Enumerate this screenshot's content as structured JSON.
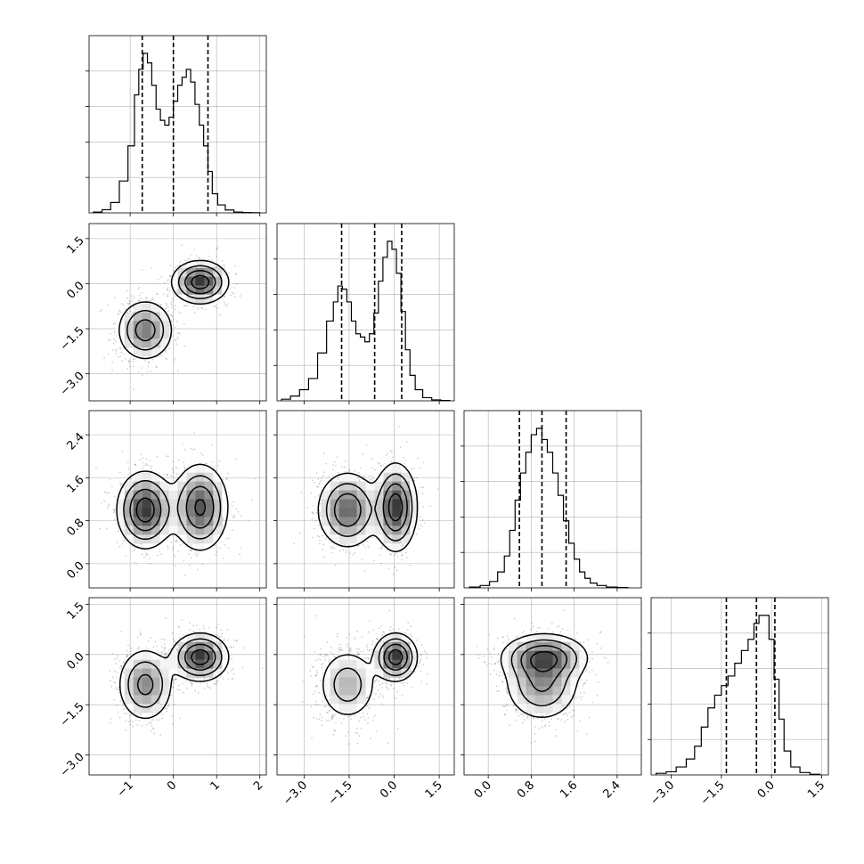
{
  "chart_data": {
    "type": "corner",
    "title": "",
    "grid": true,
    "parameters": [
      {
        "range": [
          -1.95,
          2.15
        ],
        "ticks": [
          -1,
          0,
          1,
          2
        ],
        "tick_labels": [
          "−1",
          "0",
          "1",
          "2"
        ],
        "quantiles": [
          -0.72,
          0.0,
          0.8
        ],
        "histogram": {
          "bins": [
            -1.75,
            -1.55,
            -1.35,
            -1.15,
            -0.95,
            -0.85,
            -0.75,
            -0.65,
            -0.55,
            -0.45,
            -0.35,
            -0.25,
            -0.15,
            -0.05,
            0.05,
            0.15,
            0.25,
            0.35,
            0.45,
            0.55,
            0.65,
            0.75,
            0.85,
            0.95,
            1.1,
            1.3,
            1.5,
            1.7,
            1.9
          ],
          "counts": [
            0.005,
            0.02,
            0.065,
            0.2,
            0.42,
            0.74,
            0.9,
            1.0,
            0.94,
            0.8,
            0.65,
            0.58,
            0.55,
            0.6,
            0.7,
            0.8,
            0.85,
            0.9,
            0.82,
            0.68,
            0.55,
            0.42,
            0.26,
            0.12,
            0.05,
            0.018,
            0.005,
            0.002,
            0.001
          ]
        }
      },
      {
        "range": [
          -3.9,
          2.0
        ],
        "ticks": [
          -3.0,
          -1.5,
          0.0,
          1.5
        ],
        "tick_labels": [
          "−3.0",
          "−1.5",
          "0.0",
          "1.5"
        ],
        "quantiles": [
          -1.75,
          -0.65,
          0.25
        ],
        "histogram": {
          "bins": [
            -3.6,
            -3.3,
            -3.0,
            -2.7,
            -2.4,
            -2.1,
            -1.95,
            -1.8,
            -1.65,
            -1.5,
            -1.35,
            -1.2,
            -1.05,
            -0.9,
            -0.75,
            -0.6,
            -0.45,
            -0.3,
            -0.15,
            0.0,
            0.15,
            0.3,
            0.45,
            0.6,
            0.8,
            1.1,
            1.4,
            1.7
          ],
          "counts": [
            0.01,
            0.03,
            0.07,
            0.14,
            0.3,
            0.5,
            0.62,
            0.72,
            0.7,
            0.62,
            0.5,
            0.42,
            0.4,
            0.37,
            0.42,
            0.55,
            0.75,
            0.9,
            1.0,
            0.95,
            0.8,
            0.56,
            0.32,
            0.16,
            0.07,
            0.02,
            0.006,
            0.002
          ]
        }
      },
      {
        "range": [
          -0.45,
          2.85
        ],
        "ticks": [
          0.0,
          0.8,
          1.6,
          2.4
        ],
        "tick_labels": [
          "0.0",
          "0.8",
          "1.6",
          "2.4"
        ],
        "quantiles": [
          0.58,
          1.0,
          1.45
        ],
        "histogram": {
          "bins": [
            -0.25,
            -0.05,
            0.1,
            0.25,
            0.35,
            0.45,
            0.55,
            0.65,
            0.75,
            0.85,
            0.95,
            1.05,
            1.15,
            1.25,
            1.35,
            1.45,
            1.55,
            1.65,
            1.75,
            1.85,
            1.95,
            2.1,
            2.3,
            2.5
          ],
          "counts": [
            0.005,
            0.015,
            0.04,
            0.1,
            0.2,
            0.36,
            0.55,
            0.72,
            0.85,
            0.96,
            1.0,
            0.93,
            0.85,
            0.72,
            0.58,
            0.42,
            0.28,
            0.18,
            0.1,
            0.06,
            0.03,
            0.015,
            0.005,
            0.002
          ]
        }
      },
      {
        "range": [
          -3.6,
          1.7
        ],
        "ticks": [
          -3.0,
          -1.5,
          0.0,
          1.5
        ],
        "tick_labels": [
          "−3.0",
          "−1.5",
          "0.0",
          "1.5"
        ],
        "quantiles": [
          -1.35,
          -0.45,
          0.1
        ],
        "histogram": {
          "bins": [
            -3.3,
            -3.0,
            -2.7,
            -2.4,
            -2.2,
            -2.0,
            -1.8,
            -1.6,
            -1.4,
            -1.2,
            -1.0,
            -0.8,
            -0.6,
            -0.45,
            -0.3,
            -0.15,
            0.0,
            0.15,
            0.3,
            0.45,
            0.7,
            1.0,
            1.3
          ],
          "counts": [
            0.01,
            0.02,
            0.05,
            0.1,
            0.18,
            0.3,
            0.42,
            0.5,
            0.56,
            0.62,
            0.7,
            0.78,
            0.85,
            0.95,
            1.0,
            1.0,
            0.85,
            0.6,
            0.35,
            0.15,
            0.05,
            0.015,
            0.004
          ]
        }
      }
    ],
    "components": [
      {
        "weight": 0.5,
        "mean": [
          -0.65,
          -1.55,
          1.0,
          -0.9
        ],
        "sd": [
          0.32,
          0.5,
          0.35,
          0.55
        ]
      },
      {
        "weight": 0.5,
        "mean": [
          0.62,
          0.05,
          1.05,
          -0.08
        ],
        "sd": [
          0.32,
          0.35,
          0.4,
          0.35
        ]
      }
    ],
    "scatter_points_per_panel": 1400,
    "contour_levels": [
      0.12,
      0.3,
      0.55,
      0.82
    ],
    "colors": {
      "line": "#000000",
      "density_dark": "#000000",
      "density_light": "#ffffff",
      "points": "#000000",
      "grid": "#b0b0b0"
    }
  }
}
